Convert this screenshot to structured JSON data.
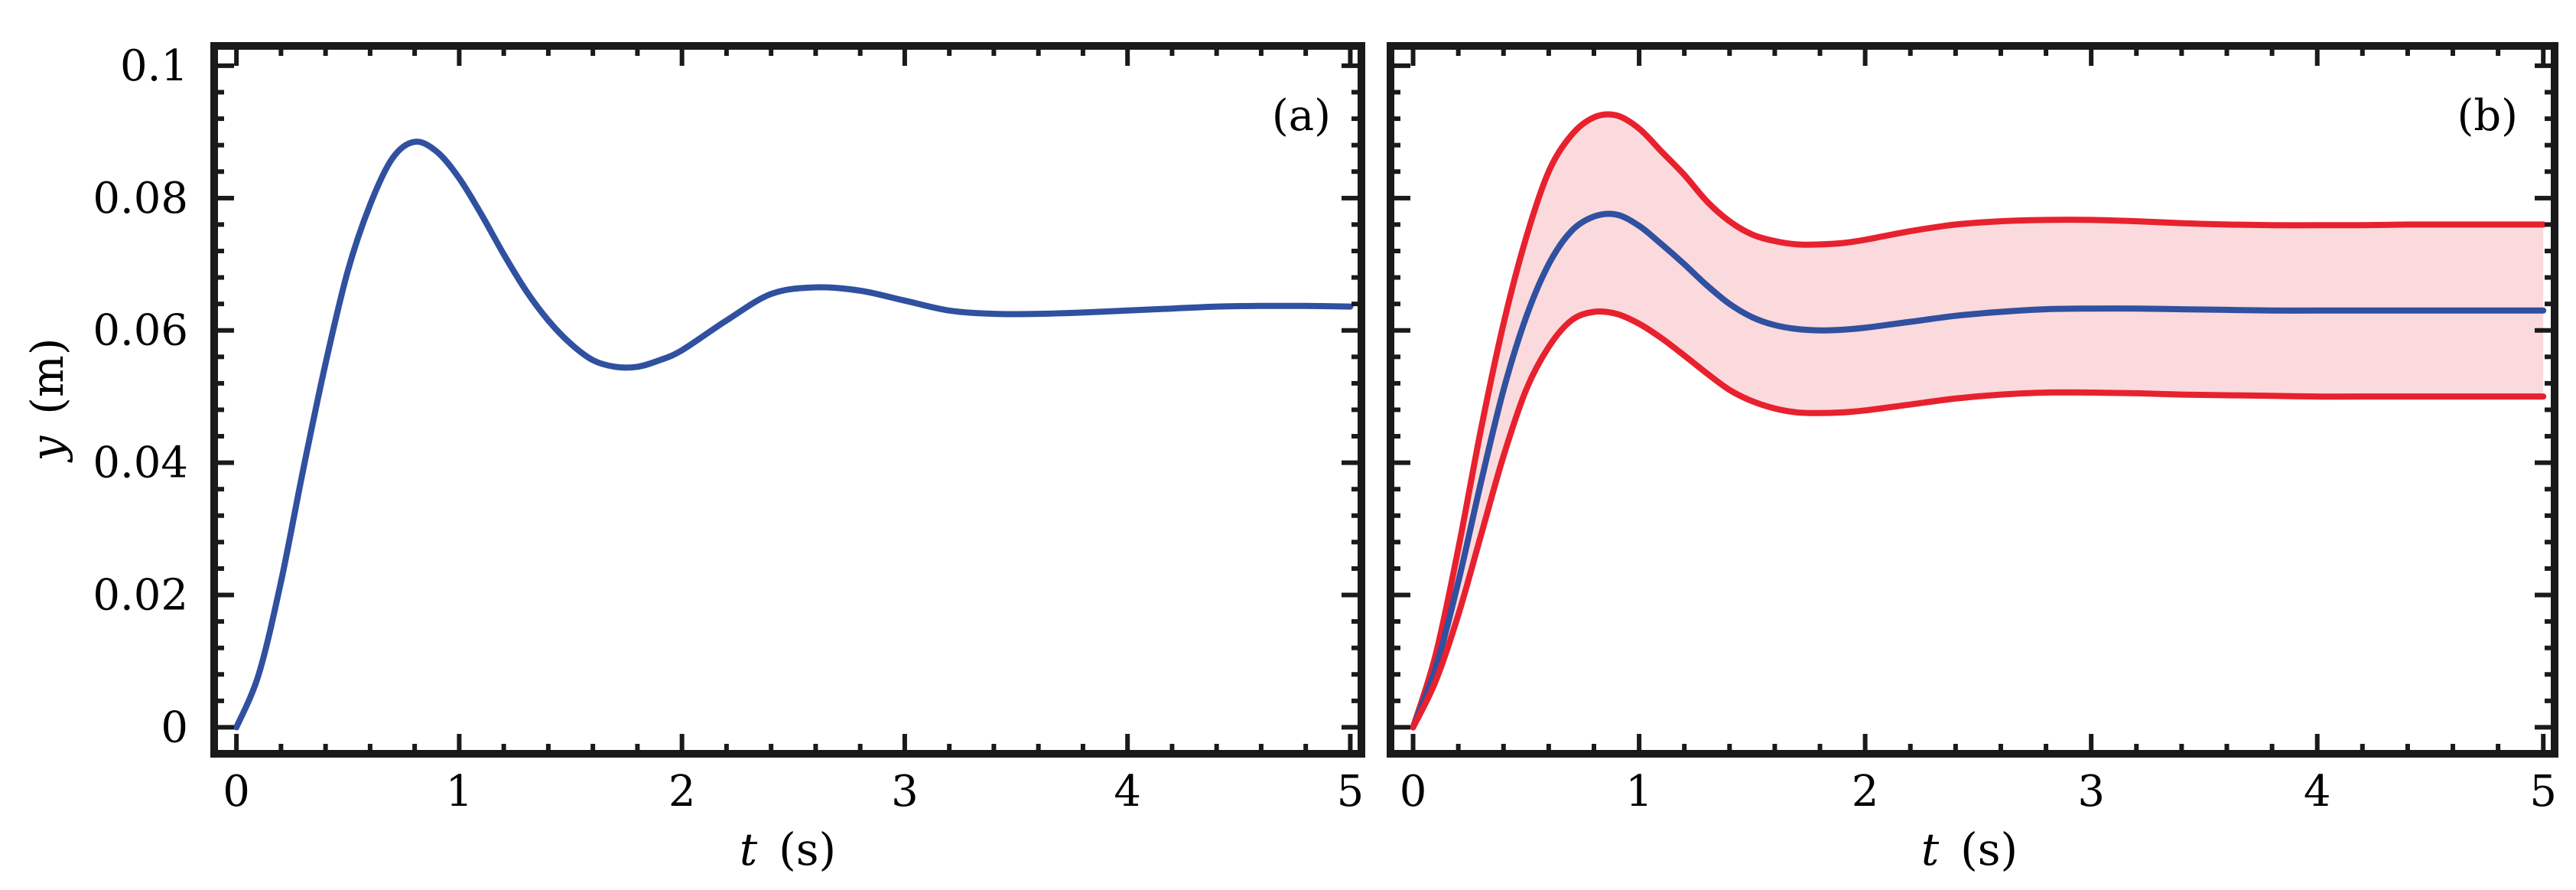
{
  "chart_data": [
    {
      "type": "line",
      "panel_label": "(a)",
      "xlabel_var": "t",
      "xlabel_unit": "(s)",
      "ylabel_var": "y",
      "ylabel_unit": "(m)",
      "xlim": [
        -0.1,
        5.05
      ],
      "ylim": [
        -0.004,
        0.103
      ],
      "xticks": [
        0,
        1,
        2,
        3,
        4,
        5
      ],
      "xtick_labels": [
        "0",
        "1",
        "2",
        "3",
        "4",
        "5"
      ],
      "yticks": [
        0,
        0.02,
        0.04,
        0.06,
        0.08,
        0.1
      ],
      "ytick_labels": [
        "0",
        "0.02",
        "0.04",
        "0.06",
        "0.08",
        "0.1"
      ],
      "grid": false,
      "series": [
        {
          "color": "#3050a0",
          "x": [
            0,
            0.1,
            0.2,
            0.3,
            0.4,
            0.5,
            0.6,
            0.7,
            0.8,
            0.9,
            1.0,
            1.1,
            1.2,
            1.3,
            1.4,
            1.5,
            1.6,
            1.7,
            1.8,
            1.9,
            2.0,
            2.2,
            2.4,
            2.6,
            2.8,
            3.0,
            3.2,
            3.4,
            3.6,
            3.8,
            4.0,
            4.2,
            4.4,
            4.6,
            4.8,
            5.0
          ],
          "y": [
            0,
            0.008,
            0.022,
            0.039,
            0.055,
            0.069,
            0.079,
            0.086,
            0.0885,
            0.087,
            0.083,
            0.0775,
            0.0715,
            0.066,
            0.0615,
            0.058,
            0.0555,
            0.0545,
            0.0545,
            0.0555,
            0.057,
            0.0615,
            0.0655,
            0.0665,
            0.066,
            0.0645,
            0.063,
            0.0625,
            0.0625,
            0.0627,
            0.063,
            0.0633,
            0.0636,
            0.0637,
            0.0637,
            0.0636
          ]
        }
      ]
    },
    {
      "type": "line",
      "panel_label": "(b)",
      "xlabel_var": "t",
      "xlabel_unit": "(s)",
      "xlim": [
        -0.1,
        5.05
      ],
      "ylim": [
        -0.004,
        0.103
      ],
      "xticks": [
        0,
        1,
        2,
        3,
        4,
        5
      ],
      "xtick_labels": [
        "0",
        "1",
        "2",
        "3",
        "4",
        "5"
      ],
      "yticks": [
        0,
        0.02,
        0.04,
        0.06,
        0.08,
        0.1
      ],
      "grid": false,
      "band": {
        "fill": "#fadadd",
        "between": [
          "upper",
          "lower"
        ]
      },
      "series": [
        {
          "id": "upper",
          "color": "#e8212e",
          "x": [
            0,
            0.1,
            0.2,
            0.3,
            0.4,
            0.5,
            0.6,
            0.7,
            0.8,
            0.9,
            1.0,
            1.1,
            1.2,
            1.3,
            1.4,
            1.5,
            1.6,
            1.7,
            1.8,
            1.9,
            2.0,
            2.2,
            2.4,
            2.6,
            2.8,
            3.0,
            3.2,
            3.4,
            3.6,
            3.8,
            4.0,
            4.2,
            4.4,
            4.6,
            4.8,
            5.0
          ],
          "y": [
            0,
            0.011,
            0.027,
            0.045,
            0.061,
            0.074,
            0.084,
            0.0895,
            0.0922,
            0.0925,
            0.0905,
            0.087,
            0.0835,
            0.0795,
            0.0765,
            0.0745,
            0.0735,
            0.073,
            0.073,
            0.0732,
            0.0737,
            0.075,
            0.076,
            0.0765,
            0.0767,
            0.0767,
            0.0765,
            0.0762,
            0.076,
            0.0759,
            0.0759,
            0.0759,
            0.076,
            0.076,
            0.076,
            0.076
          ]
        },
        {
          "id": "mean",
          "color": "#3050a0",
          "x": [
            0,
            0.1,
            0.2,
            0.3,
            0.4,
            0.5,
            0.6,
            0.7,
            0.8,
            0.9,
            1.0,
            1.1,
            1.2,
            1.3,
            1.4,
            1.5,
            1.6,
            1.7,
            1.8,
            1.9,
            2.0,
            2.2,
            2.4,
            2.6,
            2.8,
            3.0,
            3.2,
            3.4,
            3.6,
            3.8,
            4.0,
            4.2,
            4.4,
            4.6,
            4.8,
            5.0
          ],
          "y": [
            0,
            0.009,
            0.022,
            0.037,
            0.051,
            0.062,
            0.07,
            0.075,
            0.0772,
            0.0775,
            0.0758,
            0.073,
            0.07,
            0.0668,
            0.064,
            0.062,
            0.0608,
            0.0602,
            0.06,
            0.0601,
            0.0604,
            0.0613,
            0.0622,
            0.0628,
            0.0632,
            0.0633,
            0.0633,
            0.0632,
            0.0631,
            0.063,
            0.063,
            0.063,
            0.063,
            0.063,
            0.063,
            0.063
          ]
        },
        {
          "id": "lower",
          "color": "#e8212e",
          "x": [
            0,
            0.1,
            0.2,
            0.3,
            0.4,
            0.5,
            0.6,
            0.7,
            0.8,
            0.9,
            1.0,
            1.1,
            1.2,
            1.3,
            1.4,
            1.5,
            1.6,
            1.7,
            1.8,
            1.9,
            2.0,
            2.2,
            2.4,
            2.6,
            2.8,
            3.0,
            3.2,
            3.4,
            3.6,
            3.8,
            4.0,
            4.2,
            4.4,
            4.6,
            4.8,
            5.0
          ],
          "y": [
            0,
            0.007,
            0.017,
            0.029,
            0.041,
            0.051,
            0.0575,
            0.0615,
            0.0628,
            0.0625,
            0.061,
            0.0588,
            0.0562,
            0.0535,
            0.051,
            0.0493,
            0.0482,
            0.0476,
            0.0475,
            0.0476,
            0.0479,
            0.0488,
            0.0497,
            0.0503,
            0.0506,
            0.0506,
            0.0505,
            0.0503,
            0.0502,
            0.0501,
            0.05,
            0.05,
            0.05,
            0.05,
            0.05,
            0.05
          ]
        }
      ]
    }
  ]
}
